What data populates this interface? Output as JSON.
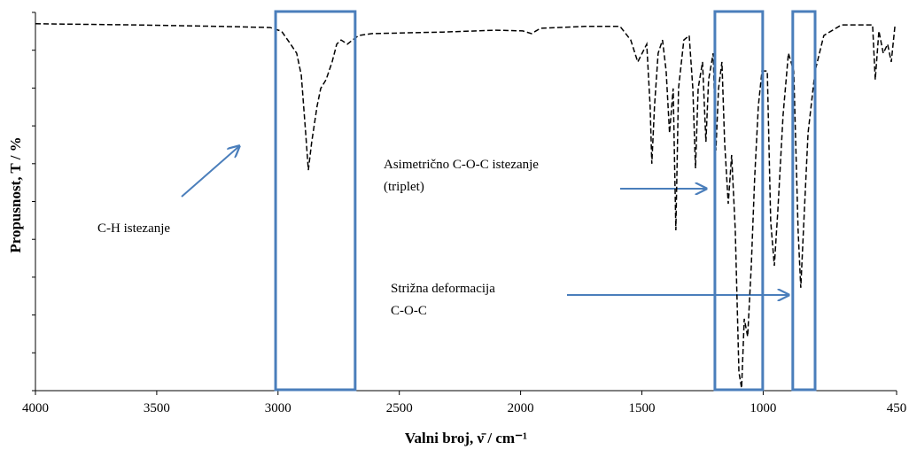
{
  "chart_data": {
    "type": "line",
    "xlabel": "Valni broj, ν̄ / cm⁻¹",
    "ylabel": "Propusnost, T / %",
    "x": [
      4000,
      3598,
      3233,
      3032,
      2985,
      2948,
      2923,
      2904,
      2886,
      2875,
      2861,
      2839,
      2824,
      2802,
      2777,
      2758,
      2740,
      2714,
      2693,
      2667,
      2612,
      2320,
      2101,
      1991,
      1955,
      1918,
      1736,
      1590,
      1546,
      1517,
      1499,
      1480,
      1466,
      1459,
      1448,
      1433,
      1415,
      1400,
      1386,
      1371,
      1360,
      1349,
      1327,
      1305,
      1290,
      1279,
      1268,
      1250,
      1236,
      1225,
      1206,
      1195,
      1184,
      1170,
      1159,
      1144,
      1130,
      1115,
      1100,
      1089,
      1078,
      1064,
      1049,
      1035,
      1020,
      1005,
      983,
      969,
      954,
      940,
      918,
      896,
      874,
      856,
      845,
      834,
      815,
      786,
      750,
      677,
      549,
      538,
      523,
      505,
      487,
      472,
      457,
      450
    ],
    "series": [
      {
        "color": "#000000",
        "values": [
          97,
          96.7,
          96.3,
          96,
          95,
          91.6,
          89.2,
          83.4,
          68.1,
          58.3,
          65.8,
          75.2,
          79.9,
          82.2,
          86.9,
          91.6,
          92.7,
          91.6,
          92.7,
          93.9,
          94.4,
          94.8,
          95.3,
          95.1,
          94.4,
          95.8,
          96.3,
          96.3,
          92.7,
          86.9,
          89.2,
          91.6,
          75.2,
          60,
          75.2,
          89.2,
          92.7,
          84.5,
          68.1,
          79.9,
          42.4,
          79.9,
          92.7,
          93.9,
          79.9,
          58.8,
          79.9,
          86.9,
          65.8,
          82.2,
          89.2,
          63.5,
          79.9,
          86.9,
          65.8,
          49.4,
          62.3,
          42.4,
          4.9,
          0.7,
          19,
          14.3,
          33,
          56.4,
          75.2,
          84.5,
          84.5,
          44.7,
          33,
          47.1,
          72.8,
          89.2,
          84.5,
          42.4,
          27.2,
          42.4,
          68.1,
          84.5,
          93.9,
          96.7,
          96.7,
          82.2,
          95.1,
          89.2,
          91.6,
          86.9,
          96.3,
          96.7
        ]
      }
    ],
    "xlim": [
      4000,
      450
    ],
    "xticks": [
      4000,
      3500,
      3000,
      2500,
      2000,
      1500,
      1000,
      450
    ],
    "ylim": [
      0,
      100
    ],
    "yticks": [
      0,
      10,
      20,
      30,
      40,
      50,
      60,
      70,
      80,
      90,
      100
    ],
    "highlight_ranges": [
      [
        3010,
        2682
      ],
      [
        1199,
        1002
      ],
      [
        878,
        786
      ]
    ],
    "highlight_color": "#4a7ebb",
    "annotations": [
      "C-H istezanje",
      "Asimetrično C-O-C istezanje",
      "(triplet)",
      "Strižna deformacija",
      "C-O-C"
    ]
  }
}
